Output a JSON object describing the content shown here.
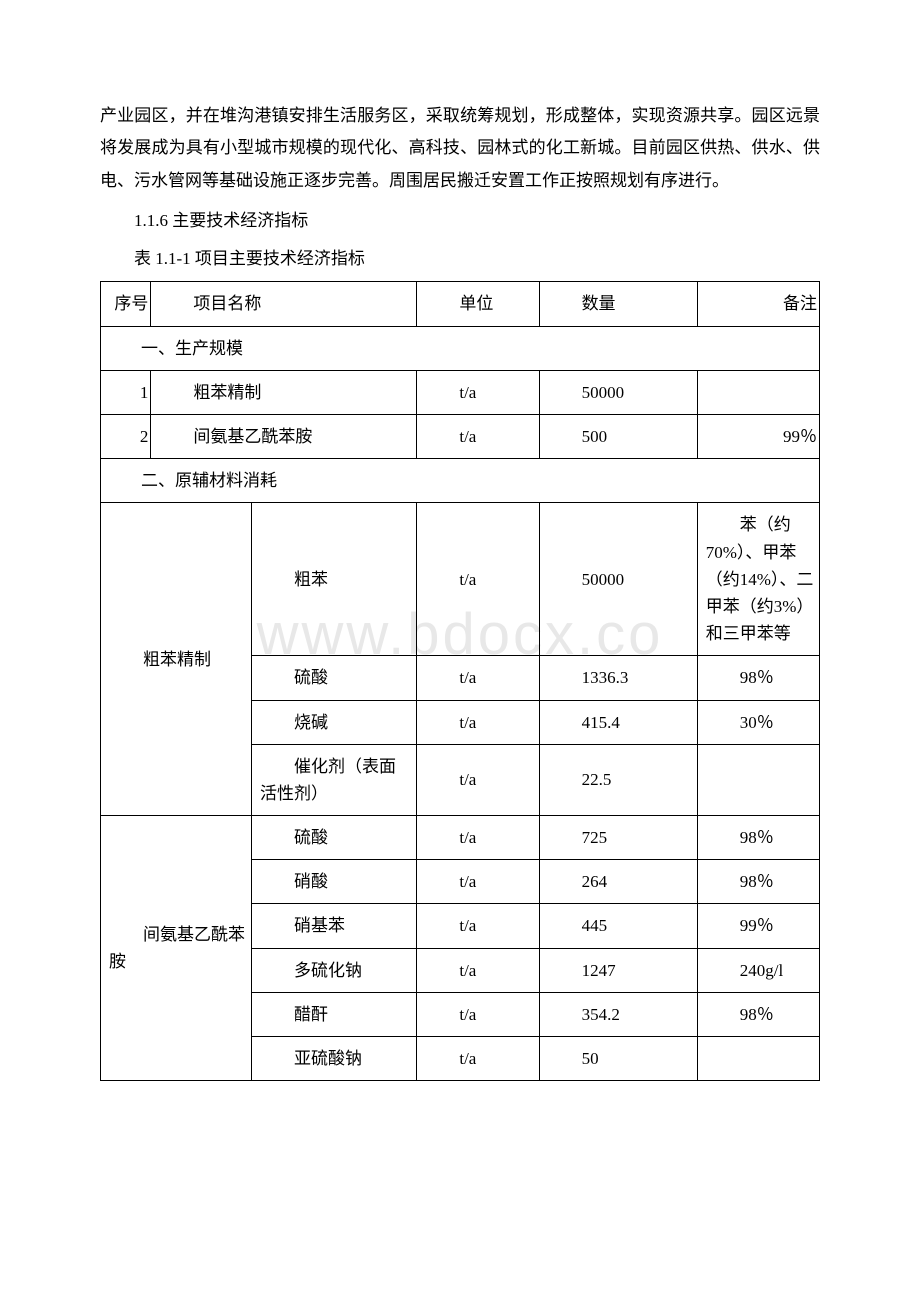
{
  "watermark": "www.bdocx.co",
  "paragraph1": "产业园区，并在堆沟港镇安排生活服务区，采取统筹规划，形成整体，实现资源共享。园区远景将发展成为具有小型城市规模的现代化、高科技、园林式的化工新城。目前园区供热、供水、供电、污水管网等基础设施正逐步完善。周围居民搬迁安置工作正按照规划有序进行。",
  "heading": "1.1.6 主要技术经济指标",
  "caption": "表 1.1-1 项目主要技术经济指标",
  "table": {
    "headers": {
      "seq": "序号",
      "name": "项目名称",
      "unit": "单位",
      "qty": "数量",
      "note": "备注"
    },
    "section1": {
      "title": "一、生产规模",
      "rows": [
        {
          "seq": "1",
          "name": "粗苯精制",
          "unit": "t/a",
          "qty": "50000",
          "note": ""
        },
        {
          "seq": "2",
          "name": "间氨基乙酰苯胺",
          "unit": "t/a",
          "qty": "500",
          "note": "99％"
        }
      ]
    },
    "section2": {
      "title": "二、原辅材料消耗",
      "group1": {
        "label": "粗苯精制",
        "rows": [
          {
            "sub": "粗苯",
            "unit": "t/a",
            "qty": "50000",
            "note": "苯（约 70%）、甲苯（约14%）、二甲苯（约3%）和三甲苯等"
          },
          {
            "sub": "硫酸",
            "unit": "t/a",
            "qty": "1336.3",
            "note": "98％"
          },
          {
            "sub": "烧碱",
            "unit": "t/a",
            "qty": "415.4",
            "note": "30％"
          },
          {
            "sub": "催化剂（表面活性剂）",
            "unit": "t/a",
            "qty": "22.5",
            "note": ""
          }
        ]
      },
      "group2": {
        "label": "间氨基乙酰苯胺",
        "rows": [
          {
            "sub": "硫酸",
            "unit": "t/a",
            "qty": "725",
            "note": "98％"
          },
          {
            "sub": "硝酸",
            "unit": "t/a",
            "qty": "264",
            "note": "98％"
          },
          {
            "sub": "硝基苯",
            "unit": "t/a",
            "qty": "445",
            "note": "99％"
          },
          {
            "sub": "多硫化钠",
            "unit": "t/a",
            "qty": "1247",
            "note": "240g/l"
          },
          {
            "sub": "醋酐",
            "unit": "t/a",
            "qty": "354.2",
            "note": "98％"
          },
          {
            "sub": "亚硫酸钠",
            "unit": "t/a",
            "qty": "50",
            "note": ""
          }
        ]
      }
    }
  }
}
